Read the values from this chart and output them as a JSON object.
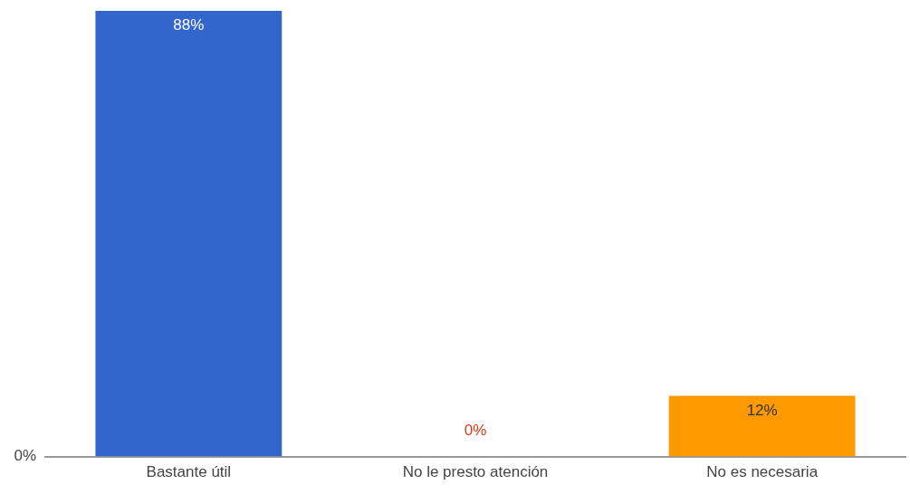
{
  "chart_data": {
    "type": "bar",
    "categories": [
      "Bastante útil",
      "No le presto atención",
      "No es necesaria"
    ],
    "values": [
      88,
      0,
      12
    ],
    "colors": [
      "#3366cc",
      "#dc3912",
      "#ff9900"
    ],
    "value_labels": [
      "88%",
      "0%",
      "12%"
    ],
    "annotations": [
      "0%"
    ],
    "grid": false,
    "legend": false
  }
}
